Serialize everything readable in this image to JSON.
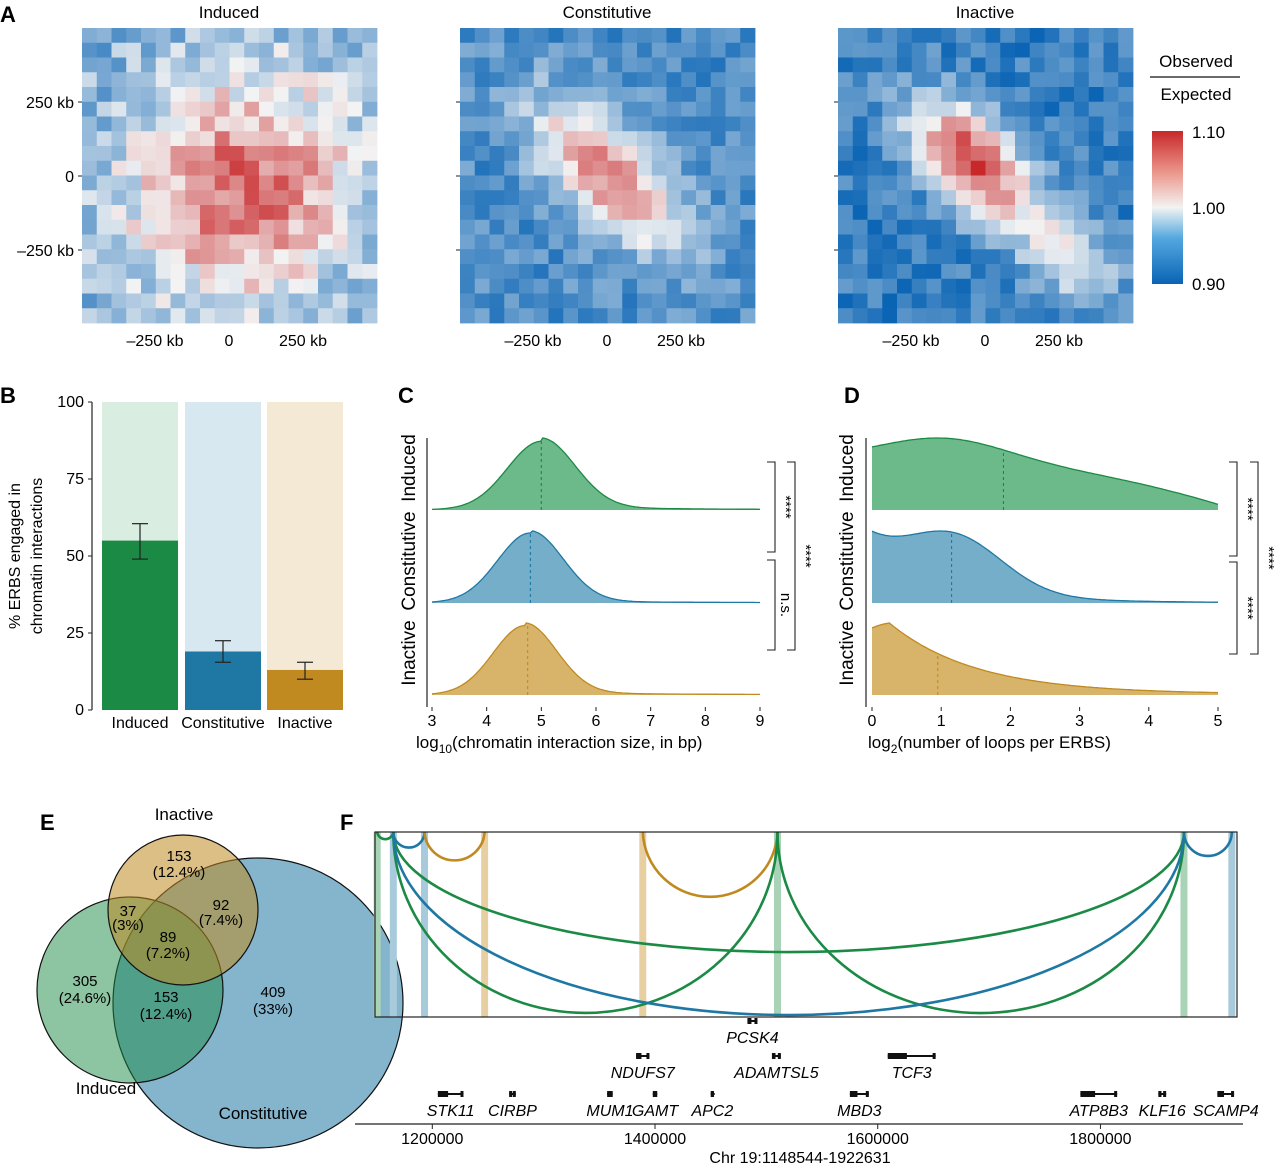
{
  "panels": [
    "A",
    "B",
    "C",
    "D",
    "E",
    "F"
  ],
  "colors": {
    "induced": "#1b8a45",
    "constitutive": "#1f78a4",
    "inactive": "#c08a20",
    "induced_fill": "#6cb98a",
    "constitutive_fill": "#74aec9",
    "inactive_fill": "#d8b36a",
    "heat_low": "#0a64b4",
    "heat_mid": "#f3f3f3",
    "heat_high": "#c8282a"
  },
  "chart_data": [
    {
      "panel": "A",
      "type": "heatmap",
      "maps": [
        {
          "title": "Induced",
          "features": [
            {
              "cx": 0.62,
              "cy": 0.47,
              "sigma": 0.32,
              "amp": 0.12,
              "aspect": 1.1
            }
          ],
          "base": -0.05,
          "noise": 0.03
        },
        {
          "title": "Constitutive",
          "features": [
            {
              "cx": 0.5,
              "cy": 0.5,
              "sigma": 0.28,
              "amp": 0.13,
              "aspect": 0.45
            }
          ],
          "base": -0.07,
          "noise": 0.02
        },
        {
          "title": "Inactive",
          "features": [
            {
              "cx": 0.45,
              "cy": 0.45,
              "sigma": 0.22,
              "amp": 0.17,
              "aspect": 0.55
            },
            {
              "cx": 0.78,
              "cy": 0.78,
              "sigma": 0.18,
              "amp": 0.08,
              "aspect": 0.6
            }
          ],
          "base": -0.08,
          "noise": 0.02
        }
      ],
      "ytick_labels": [
        "250 kb",
        "0",
        "–250 kb"
      ],
      "xtick_labels": [
        "–250 kb",
        "0",
        "250 kb"
      ],
      "colorbar": {
        "title_top": "Observed",
        "title_bottom": "Expected",
        "ticks": [
          "1.10",
          "1.00",
          "0.90"
        ],
        "range": [
          0.9,
          1.1
        ]
      }
    },
    {
      "panel": "B",
      "type": "bar",
      "categories": [
        "Induced",
        "Constitutive",
        "Inactive"
      ],
      "values": [
        55,
        19,
        13
      ],
      "error": [
        [
          49,
          60.5
        ],
        [
          15.5,
          22.5
        ],
        [
          10,
          15.5
        ]
      ],
      "background": 100,
      "ylabel": "% ERBS engaged in chromatin interactions",
      "ylabel_lines": [
        "% ERBS engaged in",
        "chromatin interactions"
      ],
      "yticks": [
        "0",
        "25",
        "50",
        "75",
        "100"
      ],
      "ylim": [
        0,
        100
      ]
    },
    {
      "panel": "C",
      "type": "area",
      "series": [
        {
          "name": "Induced",
          "mean": 5.0,
          "sd": 0.62,
          "tail": 0.05,
          "median": 5.0
        },
        {
          "name": "Constitutive",
          "mean": 4.8,
          "sd": 0.6,
          "tail": 0.03,
          "median": 4.8
        },
        {
          "name": "Inactive",
          "mean": 4.7,
          "sd": 0.58,
          "tail": 0.04,
          "median": 4.75
        }
      ],
      "xlim": [
        3,
        9
      ],
      "xticks": [
        "3",
        "4",
        "5",
        "6",
        "7",
        "8",
        "9"
      ],
      "xlabel_main": "log",
      "xlabel_sub": "10",
      "xlabel_rest": "(chromatin interaction size, in bp)",
      "significance": [
        {
          "pair": [
            "Induced",
            "Constitutive"
          ],
          "label": "****"
        },
        {
          "pair": [
            "Constitutive",
            "Inactive"
          ],
          "label": "n.s."
        },
        {
          "pair": [
            "Induced",
            "Inactive"
          ],
          "label": "****"
        }
      ]
    },
    {
      "panel": "D",
      "type": "area",
      "series": [
        {
          "name": "Induced",
          "shape": "flat",
          "median": 1.9
        },
        {
          "name": "Constitutive",
          "shape": "mid",
          "median": 1.15
        },
        {
          "name": "Inactive",
          "shape": "decay",
          "median": 0.95
        }
      ],
      "xlim": [
        0,
        5
      ],
      "xticks": [
        "0",
        "1",
        "2",
        "3",
        "4",
        "5"
      ],
      "xlabel_main": "log",
      "xlabel_sub": "2",
      "xlabel_rest": "(number of loops per ERBS)",
      "significance": [
        {
          "pair": [
            "Induced",
            "Constitutive"
          ],
          "label": "****"
        },
        {
          "pair": [
            "Constitutive",
            "Inactive"
          ],
          "label": "****"
        },
        {
          "pair": [
            "Induced",
            "Inactive"
          ],
          "label": "****"
        }
      ]
    },
    {
      "panel": "E",
      "type": "venn",
      "sets": [
        "Inactive",
        "Induced",
        "Constitutive"
      ],
      "regions": [
        {
          "count": "153",
          "pct": "(12.4%)",
          "sets": [
            "Inactive"
          ]
        },
        {
          "count": "37",
          "pct": "(3%)",
          "sets": [
            "Inactive",
            "Induced"
          ]
        },
        {
          "count": "92",
          "pct": "(7.4%)",
          "sets": [
            "Inactive",
            "Constitutive"
          ]
        },
        {
          "count": "89",
          "pct": "(7.2%)",
          "sets": [
            "Inactive",
            "Induced",
            "Constitutive"
          ]
        },
        {
          "count": "305",
          "pct": "(24.6%)",
          "sets": [
            "Induced"
          ]
        },
        {
          "count": "153",
          "pct": "(12.4%)",
          "sets": [
            "Induced",
            "Constitutive"
          ]
        },
        {
          "count": "409",
          "pct": "(33%)",
          "sets": [
            "Constitutive"
          ]
        }
      ]
    },
    {
      "panel": "F",
      "type": "arc",
      "xlim": [
        1148544,
        1922631
      ],
      "xlabel": "Chr 19:1148544-1922631",
      "xticks": [
        1200000,
        1400000,
        1600000,
        1800000
      ],
      "anchors": [
        {
          "pos": 1150500,
          "set": "induced"
        },
        {
          "pos": 1165000,
          "set": "constitutive"
        },
        {
          "pos": 1193000,
          "set": "constitutive"
        },
        {
          "pos": 1247000,
          "set": "inactive"
        },
        {
          "pos": 1389000,
          "set": "inactive"
        },
        {
          "pos": 1510000,
          "set": "induced"
        },
        {
          "pos": 1875000,
          "set": "induced"
        },
        {
          "pos": 1918000,
          "set": "constitutive"
        }
      ],
      "loops": [
        {
          "from": 1150500,
          "to": 1165000,
          "set": "induced"
        },
        {
          "from": 1165000,
          "to": 1193000,
          "set": "constitutive"
        },
        {
          "from": 1193000,
          "to": 1247000,
          "set": "inactive"
        },
        {
          "from": 1389000,
          "to": 1510000,
          "set": "inactive"
        },
        {
          "from": 1165000,
          "to": 1510000,
          "set": "induced"
        },
        {
          "from": 1510000,
          "to": 1875000,
          "set": "induced"
        },
        {
          "from": 1165000,
          "to": 1875000,
          "set": "induced"
        },
        {
          "from": 1165000,
          "to": 1875000,
          "set": "constitutive"
        },
        {
          "from": 1875000,
          "to": 1918000,
          "set": "constitutive"
        }
      ],
      "genes": [
        {
          "name": "PCSK4",
          "start": 1483000,
          "end": 1492000,
          "row": 0
        },
        {
          "name": "NDUFS7",
          "start": 1383000,
          "end": 1395000,
          "row": 1
        },
        {
          "name": "ADAMTSL5",
          "start": 1505000,
          "end": 1513000,
          "row": 1
        },
        {
          "name": "TCF3",
          "start": 1609000,
          "end": 1652000,
          "row": 1
        },
        {
          "name": "STK11",
          "start": 1205000,
          "end": 1228000,
          "row": 2
        },
        {
          "name": "CIRBP",
          "start": 1269000,
          "end": 1275000,
          "row": 2
        },
        {
          "name": "MUM1",
          "start": 1357000,
          "end": 1362000,
          "row": 2
        },
        {
          "name": "GAMT",
          "start": 1398000,
          "end": 1402000,
          "row": 2
        },
        {
          "name": "APC2",
          "start": 1450000,
          "end": 1453000,
          "row": 2
        },
        {
          "name": "MBD3",
          "start": 1575000,
          "end": 1592000,
          "row": 2
        },
        {
          "name": "ATP8B3",
          "start": 1782000,
          "end": 1815000,
          "row": 2
        },
        {
          "name": "KLF16",
          "start": 1852000,
          "end": 1859000,
          "row": 2
        },
        {
          "name": "SCAMP4",
          "start": 1905000,
          "end": 1920000,
          "row": 2
        }
      ]
    }
  ]
}
